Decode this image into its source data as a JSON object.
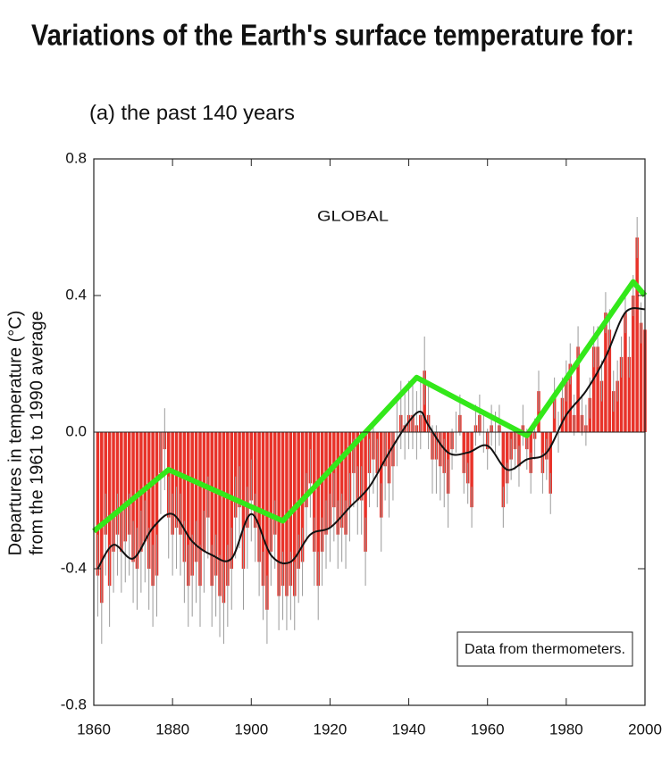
{
  "chart_data": {
    "type": "bar",
    "title": "Variations of the Earth's surface temperature for:",
    "subtitle": "(a) the past 140 years",
    "ylabel": [
      "Departures in temperature (°C)",
      "from the 1961 to 1990 average"
    ],
    "annotations": [
      "GLOBAL",
      "Data from thermometers."
    ],
    "xlim": [
      1860,
      2000
    ],
    "xticks": [
      1860,
      1880,
      1900,
      1920,
      1940,
      1960,
      1980,
      2000
    ],
    "ylim": [
      -0.8,
      0.8
    ],
    "yticks": [
      -0.8,
      -0.4,
      {
        "value": 0,
        "label": "0.0"
      },
      0.4,
      0.8
    ],
    "series": [
      {
        "type": "bar",
        "color": "#e8332a",
        "error_color": "#9a9a9a",
        "x": [
          1861,
          1862,
          1863,
          1864,
          1865,
          1866,
          1867,
          1868,
          1869,
          1870,
          1871,
          1872,
          1873,
          1874,
          1875,
          1876,
          1877,
          1878,
          1879,
          1880,
          1881,
          1882,
          1883,
          1884,
          1885,
          1886,
          1887,
          1888,
          1889,
          1890,
          1891,
          1892,
          1893,
          1894,
          1895,
          1896,
          1897,
          1898,
          1899,
          1900,
          1901,
          1902,
          1903,
          1904,
          1905,
          1906,
          1907,
          1908,
          1909,
          1910,
          1911,
          1912,
          1913,
          1914,
          1915,
          1916,
          1917,
          1918,
          1919,
          1920,
          1921,
          1922,
          1923,
          1924,
          1925,
          1926,
          1927,
          1928,
          1929,
          1930,
          1931,
          1932,
          1933,
          1934,
          1935,
          1936,
          1937,
          1938,
          1939,
          1940,
          1941,
          1942,
          1943,
          1944,
          1945,
          1946,
          1947,
          1948,
          1949,
          1950,
          1951,
          1952,
          1953,
          1954,
          1955,
          1956,
          1957,
          1958,
          1959,
          1960,
          1961,
          1962,
          1963,
          1964,
          1965,
          1966,
          1967,
          1968,
          1969,
          1970,
          1971,
          1972,
          1973,
          1974,
          1975,
          1976,
          1977,
          1978,
          1979,
          1980,
          1981,
          1982,
          1983,
          1984,
          1985,
          1986,
          1987,
          1988,
          1989,
          1990,
          1991,
          1992,
          1993,
          1994,
          1995,
          1996,
          1997,
          1998,
          1999,
          2000
        ],
        "values": [
          -0.42,
          -0.5,
          -0.3,
          -0.45,
          -0.35,
          -0.3,
          -0.35,
          -0.32,
          -0.3,
          -0.38,
          -0.4,
          -0.35,
          -0.32,
          -0.4,
          -0.45,
          -0.42,
          -0.12,
          -0.05,
          -0.25,
          -0.3,
          -0.28,
          -0.3,
          -0.38,
          -0.45,
          -0.42,
          -0.38,
          -0.45,
          -0.35,
          -0.25,
          -0.45,
          -0.42,
          -0.48,
          -0.5,
          -0.45,
          -0.4,
          -0.25,
          -0.22,
          -0.4,
          -0.28,
          -0.2,
          -0.28,
          -0.38,
          -0.45,
          -0.52,
          -0.35,
          -0.3,
          -0.48,
          -0.45,
          -0.48,
          -0.45,
          -0.48,
          -0.4,
          -0.38,
          -0.22,
          -0.15,
          -0.35,
          -0.45,
          -0.35,
          -0.3,
          -0.28,
          -0.22,
          -0.3,
          -0.28,
          -0.3,
          -0.22,
          -0.12,
          -0.2,
          -0.2,
          -0.35,
          -0.12,
          -0.08,
          -0.12,
          -0.25,
          -0.1,
          -0.15,
          -0.1,
          0,
          0.05,
          0.02,
          0.05,
          0.05,
          0.02,
          0.05,
          0.18,
          0.05,
          -0.08,
          -0.08,
          -0.1,
          -0.12,
          -0.18,
          -0.05,
          0,
          0.05,
          -0.12,
          -0.15,
          -0.22,
          0.02,
          0.05,
          0,
          -0.05,
          0.02,
          0,
          0.02,
          -0.22,
          -0.15,
          -0.08,
          -0.05,
          -0.1,
          0.02,
          -0.05,
          -0.12,
          -0.02,
          0.12,
          -0.12,
          -0.08,
          -0.18,
          0.1,
          0,
          0.1,
          0.15,
          0.2,
          0.05,
          0.25,
          0.05,
          0.02,
          0.1,
          0.25,
          0.25,
          0.15,
          0.35,
          0.3,
          0.12,
          0.15,
          0.22,
          0.35,
          0.22,
          0.4,
          0.57,
          0.32,
          0.3
        ],
        "errors": [
          0.12,
          0.12,
          0.12,
          0.12,
          0.12,
          0.12,
          0.12,
          0.12,
          0.12,
          0.12,
          0.12,
          0.12,
          0.12,
          0.12,
          0.12,
          0.12,
          0.12,
          0.12,
          0.12,
          0.12,
          0.12,
          0.12,
          0.12,
          0.12,
          0.12,
          0.12,
          0.12,
          0.12,
          0.12,
          0.12,
          0.12,
          0.12,
          0.12,
          0.12,
          0.12,
          0.12,
          0.12,
          0.12,
          0.12,
          0.12,
          0.1,
          0.1,
          0.1,
          0.1,
          0.1,
          0.1,
          0.1,
          0.1,
          0.1,
          0.1,
          0.1,
          0.1,
          0.1,
          0.1,
          0.1,
          0.1,
          0.1,
          0.1,
          0.1,
          0.1,
          0.1,
          0.1,
          0.1,
          0.1,
          0.1,
          0.1,
          0.1,
          0.1,
          0.1,
          0.1,
          0.1,
          0.1,
          0.1,
          0.1,
          0.1,
          0.1,
          0.1,
          0.1,
          0.1,
          0.1,
          0.1,
          0.1,
          0.1,
          0.1,
          0.1,
          0.1,
          0.1,
          0.1,
          0.1,
          0.1,
          0.06,
          0.06,
          0.06,
          0.06,
          0.06,
          0.06,
          0.06,
          0.06,
          0.06,
          0.06,
          0.06,
          0.06,
          0.06,
          0.06,
          0.06,
          0.06,
          0.06,
          0.06,
          0.06,
          0.06,
          0.06,
          0.06,
          0.06,
          0.06,
          0.06,
          0.06,
          0.06,
          0.06,
          0.06,
          0.06,
          0.06,
          0.06,
          0.06,
          0.06,
          0.06,
          0.06,
          0.06,
          0.06,
          0.06,
          0.06,
          0.06,
          0.06,
          0.06,
          0.06,
          0.06,
          0.06,
          0.06,
          0.06,
          0.06,
          0.06
        ]
      },
      {
        "type": "line",
        "color": "#111111",
        "width": 2,
        "x": [
          1861,
          1865,
          1870,
          1875,
          1880,
          1885,
          1890,
          1895,
          1900,
          1905,
          1910,
          1915,
          1920,
          1925,
          1930,
          1935,
          1940,
          1943,
          1945,
          1950,
          1955,
          1960,
          1965,
          1970,
          1975,
          1980,
          1985,
          1990,
          1995,
          2000
        ],
        "values": [
          -0.4,
          -0.33,
          -0.37,
          -0.28,
          -0.24,
          -0.32,
          -0.36,
          -0.37,
          -0.24,
          -0.36,
          -0.38,
          -0.3,
          -0.28,
          -0.22,
          -0.16,
          -0.06,
          0.03,
          0.06,
          0.02,
          -0.06,
          -0.06,
          -0.04,
          -0.11,
          -0.08,
          -0.06,
          0.05,
          0.12,
          0.22,
          0.35,
          0.36
        ]
      },
      {
        "type": "line",
        "color": "#33e81a",
        "width": 6,
        "x": [
          1860,
          1879,
          1908,
          1942,
          1970,
          1997,
          2000
        ],
        "values": [
          -0.29,
          -0.11,
          -0.26,
          0.16,
          -0.01,
          0.44,
          0.4
        ]
      }
    ]
  }
}
